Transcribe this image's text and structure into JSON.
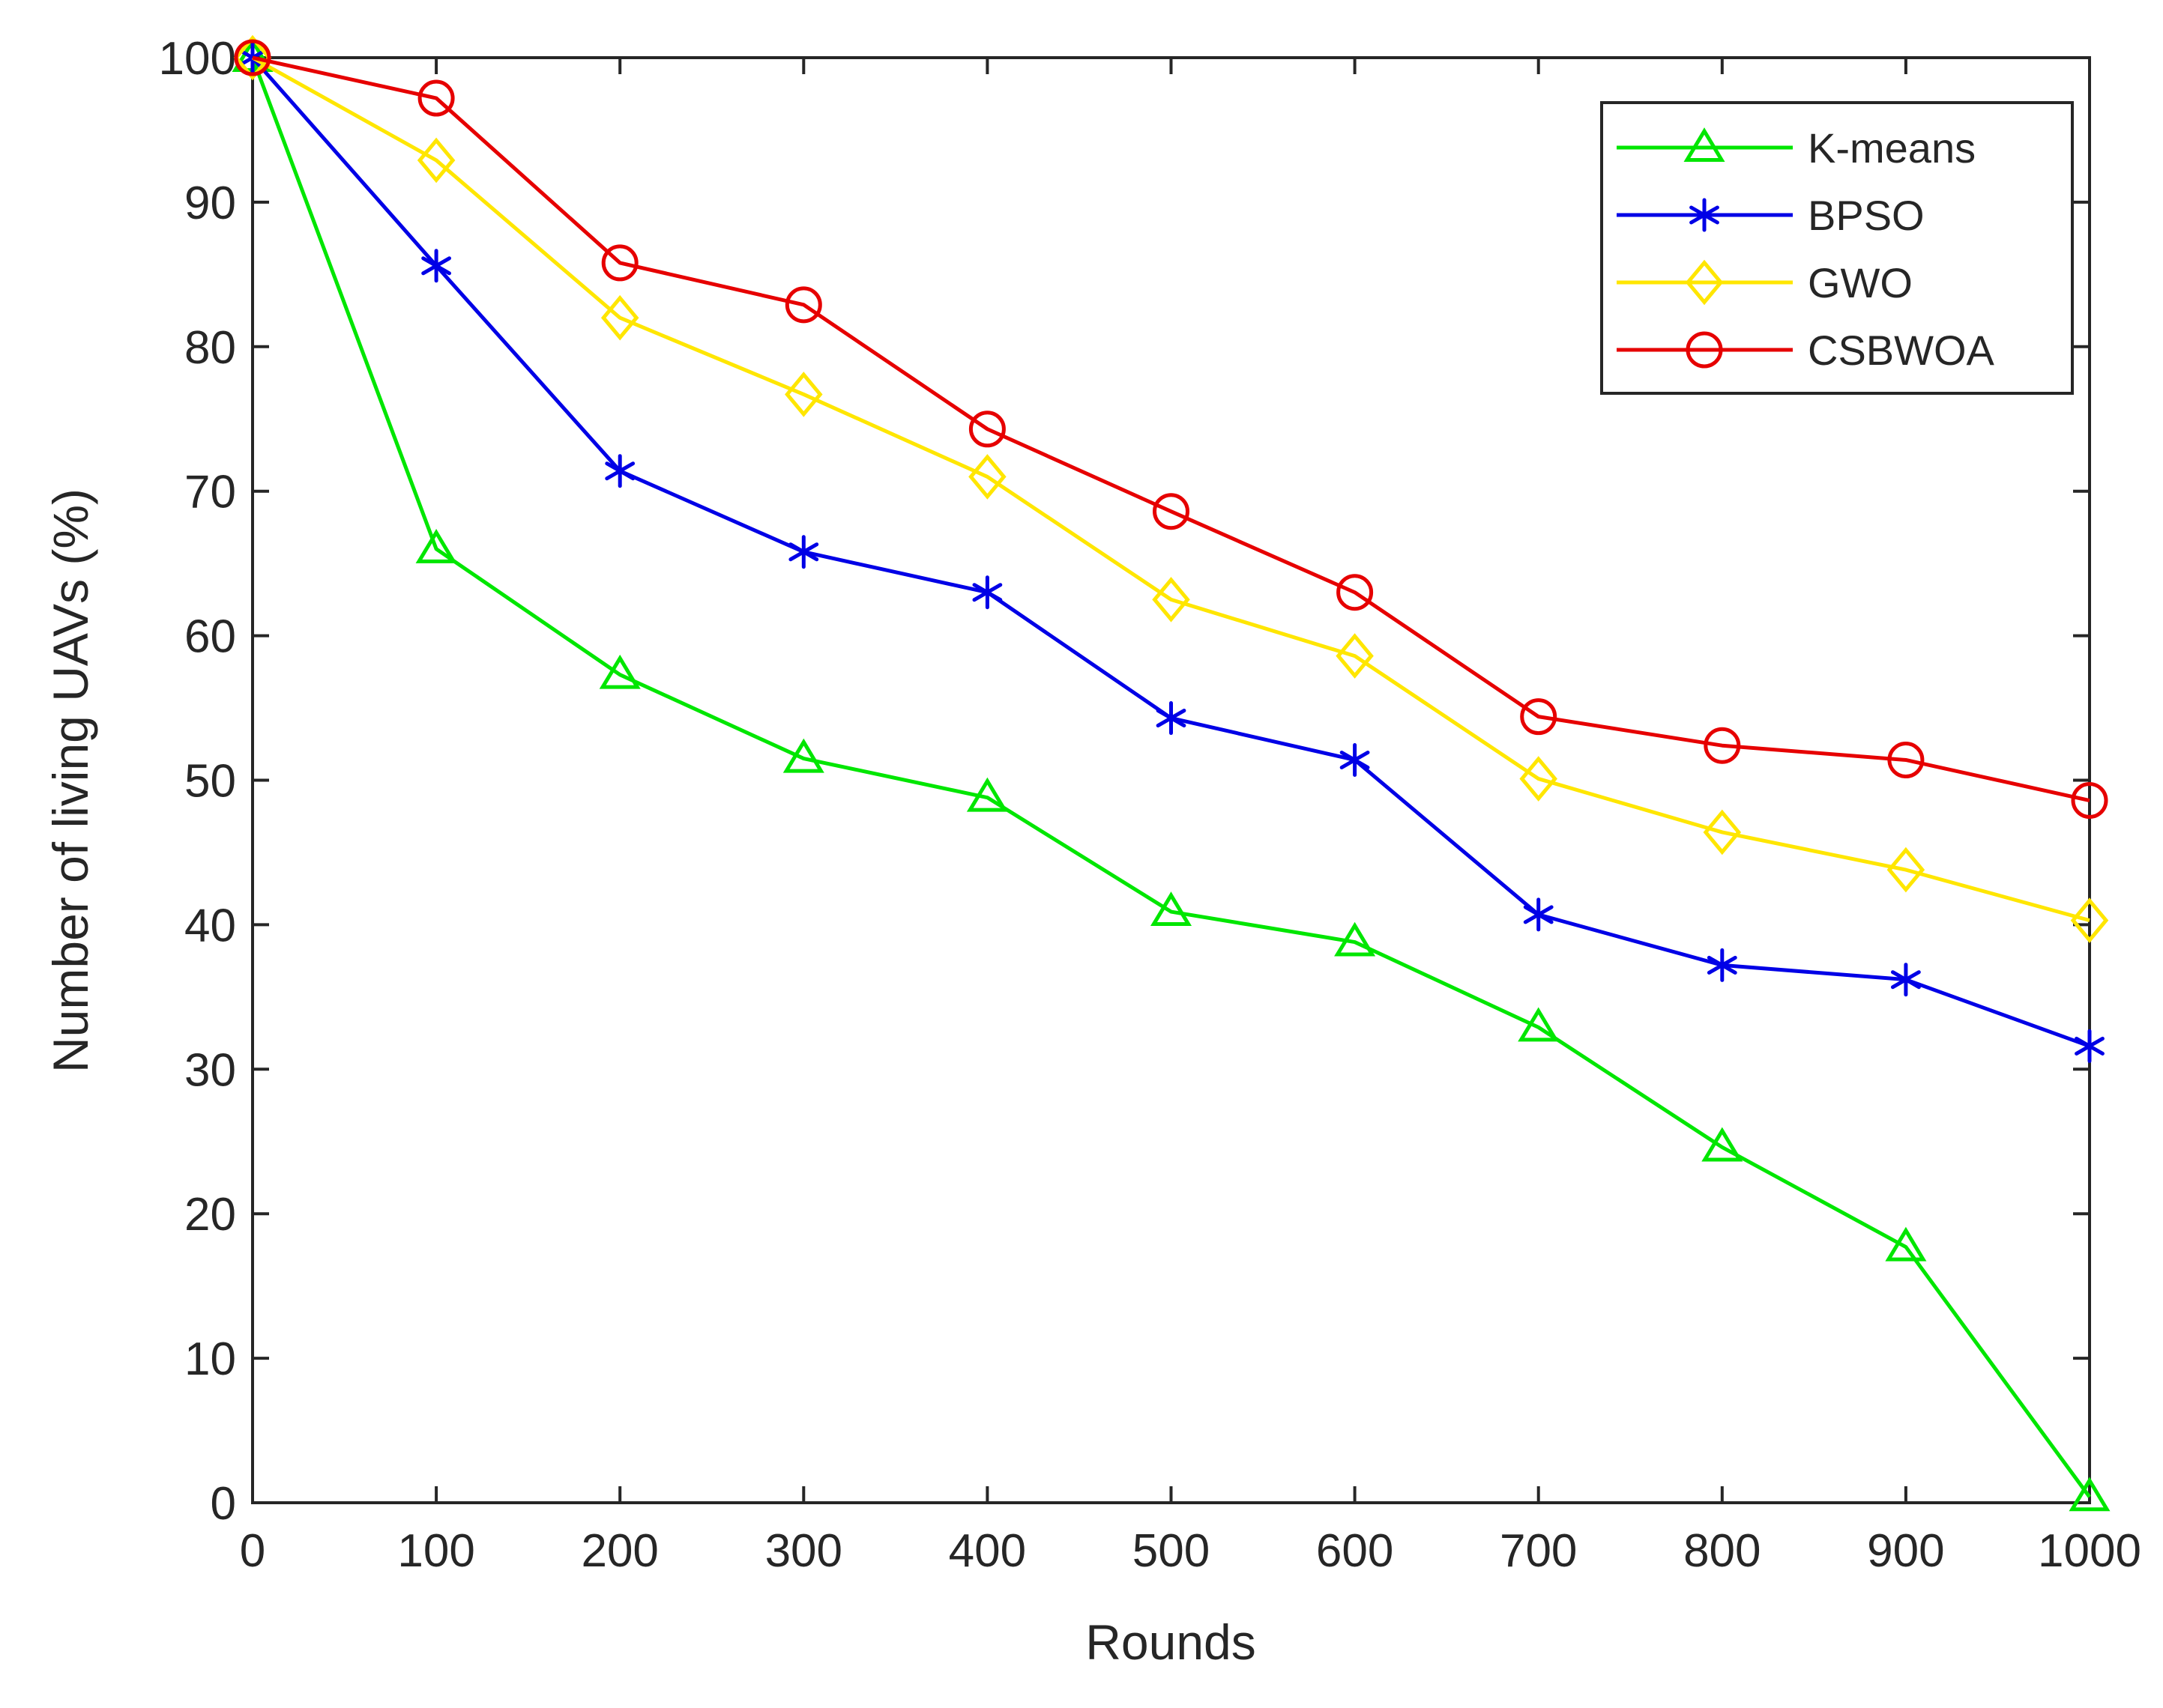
{
  "chart_data": {
    "type": "line",
    "title": "",
    "xlabel": "Rounds",
    "ylabel": "Number of living UAVs (%)",
    "xlim": [
      0,
      1000
    ],
    "ylim": [
      0,
      100
    ],
    "xticks": [
      0,
      100,
      200,
      300,
      400,
      500,
      600,
      700,
      800,
      900,
      1000
    ],
    "yticks": [
      0,
      10,
      20,
      30,
      40,
      50,
      60,
      70,
      80,
      90,
      100
    ],
    "x": [
      0,
      100,
      200,
      300,
      400,
      500,
      600,
      700,
      800,
      900,
      1000
    ],
    "grid": false,
    "legend_position": "top-right",
    "series": [
      {
        "name": "K-means",
        "color": "#00e600",
        "marker": "triangle",
        "values": [
          100,
          66,
          57.3,
          51.5,
          48.8,
          40.9,
          38.8,
          32.9,
          24.6,
          17.7,
          0.4
        ]
      },
      {
        "name": "BPSO",
        "color": "#0000e6",
        "marker": "asterisk",
        "values": [
          100,
          85.6,
          71.4,
          65.8,
          63,
          54.3,
          51.4,
          40.7,
          37.2,
          36.2,
          31.6
        ]
      },
      {
        "name": "GWO",
        "color": "#ffe600",
        "marker": "diamond",
        "values": [
          100,
          92.9,
          82,
          76.7,
          71,
          62.5,
          58.6,
          50.1,
          46.4,
          43.8,
          40.3
        ]
      },
      {
        "name": "CSBWOA",
        "color": "#e60000",
        "marker": "circle",
        "values": [
          100,
          97.2,
          85.8,
          82.9,
          74.3,
          68.6,
          63,
          54.4,
          52.4,
          51.4,
          48.6
        ]
      }
    ]
  }
}
